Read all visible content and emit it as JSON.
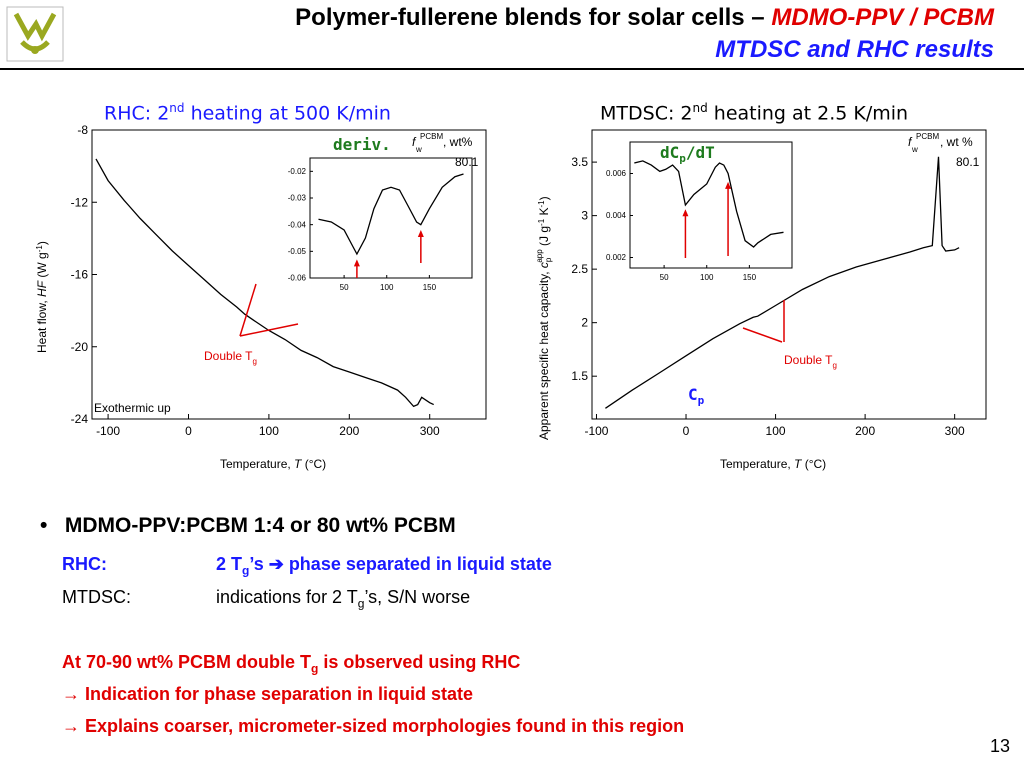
{
  "slide": {
    "title_main": "Polymer-fullerene blends for solar cells – ",
    "title_highlight": "MDMO-PPV / PCBM",
    "subtitle": "MTDSC and RHC results",
    "page_number": "13"
  },
  "left_panel": {
    "heading": "RHC: 2",
    "heading_sup": "nd",
    "heading_rest": " heating at 500 K/min",
    "deriv_label": "deriv.",
    "annotation": "Double T",
    "annotation_sub": "g",
    "exo_label": "Exothermic up",
    "legend_f": "f",
    "legend_sup": "PCBM",
    "legend_sub": "w",
    "legend_unit": ", wt%",
    "legend_value": "80.1"
  },
  "right_panel": {
    "heading": "MTDSC: 2",
    "heading_sup": "nd",
    "heading_rest": " heating at 2.5 K/min",
    "inset_label": "dC",
    "inset_label_sub": "p",
    "inset_label_rest": "/dT",
    "cp_label": "C",
    "cp_label_sub": "p",
    "annotation": "Double T",
    "annotation_sub": "g",
    "legend_f": "f",
    "legend_sup": "PCBM",
    "legend_sub": "w",
    "legend_unit": ", wt %",
    "legend_value": "80.1"
  },
  "chart_data": [
    {
      "id": "rhc",
      "type": "line",
      "xlabel": "Temperature, T (°C)",
      "ylabel": "Heat flow, HF (W g-1)",
      "xlim": [
        -120,
        370
      ],
      "ylim": [
        -24,
        -8
      ],
      "xticks": [
        -100,
        0,
        100,
        200,
        300
      ],
      "yticks": [
        -24,
        -20,
        -16,
        -12,
        -8
      ],
      "x": [
        -115,
        -100,
        -80,
        -60,
        -40,
        -20,
        0,
        20,
        40,
        60,
        70,
        80,
        100,
        120,
        140,
        160,
        180,
        200,
        220,
        240,
        260,
        270,
        280,
        285,
        290,
        300,
        305
      ],
      "y": [
        -9.6,
        -10.8,
        -11.9,
        -12.9,
        -13.8,
        -14.7,
        -15.5,
        -16.3,
        -17.1,
        -17.8,
        -18.2,
        -18.5,
        -19.1,
        -19.6,
        -20.2,
        -20.6,
        -21.1,
        -21.4,
        -21.7,
        -22.0,
        -22.4,
        -22.8,
        -23.3,
        -23.2,
        -22.8,
        -23.1,
        -23.2
      ]
    },
    {
      "id": "rhc-deriv",
      "type": "line",
      "xlim": [
        10,
        200
      ],
      "ylim": [
        -0.06,
        -0.015
      ],
      "xticks": [
        50,
        100,
        150
      ],
      "yticks": [
        -0.02,
        -0.03,
        -0.04,
        -0.05,
        -0.06
      ],
      "x": [
        20,
        35,
        50,
        60,
        65,
        75,
        85,
        95,
        105,
        115,
        125,
        135,
        140,
        150,
        165,
        180,
        190
      ],
      "y": [
        -0.038,
        -0.039,
        -0.042,
        -0.048,
        -0.051,
        -0.045,
        -0.034,
        -0.027,
        -0.026,
        -0.027,
        -0.033,
        -0.039,
        -0.04,
        -0.034,
        -0.026,
        -0.022,
        -0.021
      ]
    },
    {
      "id": "mtdsc",
      "type": "line",
      "xlabel": "Temperature, T (°C)",
      "ylabel": "Apparent specific heat capacity, cp app (J g-1 K-1)",
      "xlim": [
        -105,
        335
      ],
      "ylim": [
        1.1,
        3.8
      ],
      "xticks": [
        -100,
        0,
        100,
        200,
        300
      ],
      "yticks": [
        1.5,
        2.0,
        2.5,
        3.0,
        3.5
      ],
      "x": [
        -90,
        -60,
        -30,
        0,
        30,
        60,
        75,
        80,
        100,
        130,
        160,
        190,
        220,
        250,
        265,
        275,
        282,
        286,
        290,
        300,
        305
      ],
      "y": [
        1.2,
        1.37,
        1.53,
        1.69,
        1.85,
        1.99,
        2.05,
        2.06,
        2.16,
        2.31,
        2.43,
        2.52,
        2.59,
        2.66,
        2.7,
        2.72,
        3.55,
        2.72,
        2.67,
        2.68,
        2.7
      ]
    },
    {
      "id": "mtdsc-deriv",
      "type": "line",
      "xlim": [
        10,
        200
      ],
      "ylim": [
        0.0015,
        0.0075
      ],
      "xticks": [
        50,
        100,
        150
      ],
      "yticks": [
        0.002,
        0.004,
        0.006
      ],
      "x": [
        15,
        25,
        35,
        45,
        52,
        60,
        67,
        75,
        85,
        100,
        110,
        115,
        120,
        125,
        135,
        145,
        155,
        160,
        175,
        190
      ],
      "y": [
        0.0065,
        0.0066,
        0.0064,
        0.0061,
        0.0062,
        0.0064,
        0.0061,
        0.0045,
        0.005,
        0.0055,
        0.0063,
        0.0065,
        0.0064,
        0.006,
        0.0042,
        0.0028,
        0.0025,
        0.0027,
        0.0031,
        0.0032
      ]
    }
  ],
  "bullets": {
    "main": "MDMO-PPV:PCBM  1:4 or 80 wt% PCBM",
    "rhc_label": "RHC:",
    "rhc_text_a": "2 T",
    "rhc_text_sub": "g",
    "rhc_text_b": "’s ",
    "rhc_arrow": "➔",
    "rhc_text_c": " phase separated in liquid state",
    "mtdsc_label": "MTDSC:",
    "mtdsc_text_a": "indications for 2 T",
    "mtdsc_text_sub": "g",
    "mtdsc_text_b": "’s, S/N worse",
    "red1_a": "At 70-90 wt% PCBM double T",
    "red1_sub": "g",
    "red1_b": " is observed using RHC",
    "red2": "→ Indication for phase separation in liquid state",
    "red3": "→ Explains coarser, micrometer-sized morphologies found in this region"
  },
  "colors": {
    "title_blue": "#1a1aff",
    "accent_red": "#e00000",
    "label_green": "#1e7b1e",
    "logo_green": "#9aa820"
  }
}
